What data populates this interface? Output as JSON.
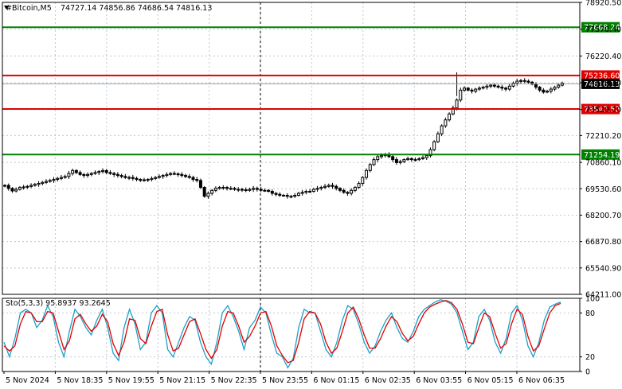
{
  "header": {
    "symbol": "#Bitcoin,M5",
    "ohlc": "74727.14 74856.86 74686.54 74816.13"
  },
  "indicator": {
    "label": "Sto(5,3,3) 95.8937 93.2645",
    "levels": [
      "100",
      "80",
      "20",
      "0"
    ]
  },
  "price_axis": {
    "ticks": [
      "78920.50",
      "77570.40",
      "76220.40",
      "74870.30",
      "73520.20",
      "72210.20",
      "70860.10",
      "69530.60",
      "68200.70",
      "66870.80",
      "65540.90",
      "64211.00"
    ]
  },
  "time_axis": {
    "labels": [
      "5 Nov 2024",
      "5 Nov 18:35",
      "5 Nov 19:55",
      "5 Nov 21:15",
      "5 Nov 22:35",
      "5 Nov 23:55",
      "6 Nov 01:15",
      "6 Nov 02:35",
      "6 Nov 03:55",
      "6 Nov 05:15",
      "6 Nov 06:35"
    ]
  },
  "colors": {
    "resistance": "#e00000",
    "support": "#008000",
    "current_price_bg": "#000000",
    "stoch_main": "#1ba0c8",
    "stoch_signal": "#e00000",
    "grid": "#c0c8d0"
  },
  "chart_data": [
    {
      "type": "candlestick",
      "title": "#Bitcoin,M5",
      "ylim": [
        64211.0,
        78920.5
      ],
      "levels": [
        {
          "value": 77668.24,
          "label": "77668.24",
          "kind": "support"
        },
        {
          "value": 75236.6,
          "label": "75236.60",
          "kind": "resistance"
        },
        {
          "value": 73547.52,
          "label": "73547.52",
          "kind": "resistance"
        },
        {
          "value": 71254.19,
          "label": "71254.19",
          "kind": "support"
        }
      ],
      "current_price": {
        "value": 74816.13,
        "label": "74816.13"
      },
      "close_series": [
        69700,
        69550,
        69420,
        69500,
        69600,
        69620,
        69650,
        69700,
        69750,
        69800,
        69850,
        69900,
        69950,
        70000,
        70050,
        70100,
        70150,
        70300,
        70450,
        70350,
        70250,
        70200,
        70250,
        70300,
        70350,
        70400,
        70450,
        70350,
        70300,
        70250,
        70200,
        70150,
        70100,
        70100,
        70050,
        70000,
        69950,
        69980,
        70000,
        70050,
        70100,
        70150,
        70200,
        70250,
        70300,
        70280,
        70250,
        70200,
        70150,
        70100,
        70000,
        69950,
        69600,
        69150,
        69300,
        69450,
        69550,
        69600,
        69600,
        69550,
        69550,
        69500,
        69500,
        69480,
        69450,
        69500,
        69550,
        69500,
        69450,
        69450,
        69400,
        69300,
        69250,
        69200,
        69200,
        69150,
        69150,
        69200,
        69300,
        69350,
        69400,
        69400,
        69500,
        69550,
        69600,
        69650,
        69700,
        69650,
        69550,
        69450,
        69350,
        69300,
        69450,
        69600,
        69800,
        70100,
        70450,
        70750,
        71000,
        71150,
        71200,
        71250,
        71150,
        71000,
        70850,
        70900,
        71000,
        71050,
        71000,
        71000,
        71050,
        71100,
        71200,
        71500,
        71900,
        72300,
        72700,
        73000,
        73300,
        73600,
        74000,
        74500,
        74600,
        74500,
        74450,
        74550,
        74600,
        74650,
        74700,
        74750,
        74700,
        74650,
        74600,
        74550,
        74700,
        74850,
        74950,
        74980,
        74950,
        74900,
        74800,
        74650,
        74500,
        74400,
        74450,
        74550,
        74650,
        74750,
        74850
      ]
    },
    {
      "type": "line",
      "title": "Sto(5,3,3) 95.8937 93.2645",
      "ylim": [
        0,
        100
      ],
      "levels": [
        20,
        80
      ],
      "series": [
        {
          "name": "main",
          "values": [
            40,
            20,
            45,
            80,
            85,
            80,
            60,
            70,
            90,
            75,
            40,
            20,
            55,
            85,
            75,
            60,
            50,
            70,
            85,
            60,
            25,
            15,
            60,
            85,
            65,
            30,
            40,
            80,
            90,
            80,
            30,
            20,
            40,
            60,
            75,
            70,
            40,
            20,
            10,
            40,
            80,
            90,
            75,
            55,
            30,
            60,
            70,
            88,
            80,
            50,
            25,
            20,
            5,
            18,
            60,
            85,
            80,
            80,
            55,
            30,
            20,
            40,
            70,
            90,
            85,
            65,
            40,
            25,
            35,
            55,
            70,
            80,
            60,
            45,
            40,
            55,
            75,
            85,
            90,
            95,
            98,
            96,
            92,
            80,
            55,
            30,
            40,
            75,
            85,
            70,
            40,
            25,
            45,
            80,
            90,
            70,
            35,
            20,
            40,
            70,
            88,
            92,
            95
          ]
        },
        {
          "name": "signal",
          "values": [
            35,
            28,
            35,
            65,
            82,
            80,
            68,
            68,
            82,
            80,
            55,
            30,
            42,
            72,
            78,
            65,
            55,
            62,
            78,
            68,
            38,
            22,
            40,
            72,
            70,
            45,
            38,
            62,
            82,
            85,
            50,
            28,
            32,
            50,
            68,
            72,
            52,
            30,
            18,
            30,
            62,
            82,
            80,
            62,
            40,
            48,
            62,
            80,
            82,
            62,
            35,
            22,
            12,
            15,
            40,
            72,
            82,
            80,
            65,
            40,
            25,
            32,
            55,
            80,
            88,
            72,
            50,
            32,
            32,
            45,
            62,
            75,
            68,
            52,
            42,
            48,
            65,
            80,
            88,
            92,
            95,
            97,
            94,
            85,
            65,
            40,
            38,
            60,
            80,
            75,
            52,
            32,
            38,
            65,
            85,
            78,
            48,
            28,
            35,
            58,
            80,
            90,
            93
          ]
        }
      ]
    }
  ]
}
